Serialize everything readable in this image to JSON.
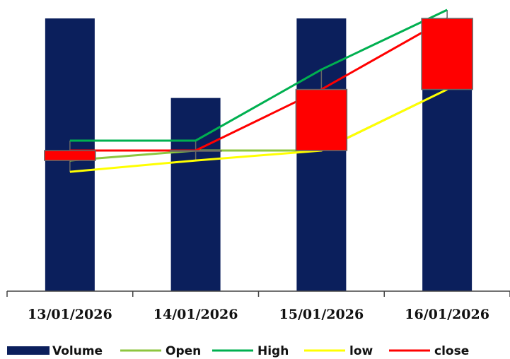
{
  "chart_data": {
    "type": "volume-ohlc",
    "categories": [
      "13/01/2026",
      "14/01/2026",
      "15/01/2026",
      "16/01/2026"
    ],
    "ylim": [
      0,
      100
    ],
    "series": [
      {
        "name": "Volume",
        "color": "#0b1f5c",
        "values": [
          96,
          68,
          96,
          96
        ]
      },
      {
        "name": "Open",
        "color": "#8dc63f",
        "values": [
          46,
          49.5,
          49.5,
          71
        ]
      },
      {
        "name": "High",
        "color": "#00b050",
        "values": [
          53,
          53,
          78,
          99
        ]
      },
      {
        "name": "low",
        "color": "#ffff00",
        "values": [
          42,
          46,
          49.5,
          71
        ]
      },
      {
        "name": "close",
        "color": "#ff0000",
        "values": [
          49.5,
          49.5,
          71,
          96
        ]
      }
    ],
    "candle_color": "#ff0000"
  }
}
